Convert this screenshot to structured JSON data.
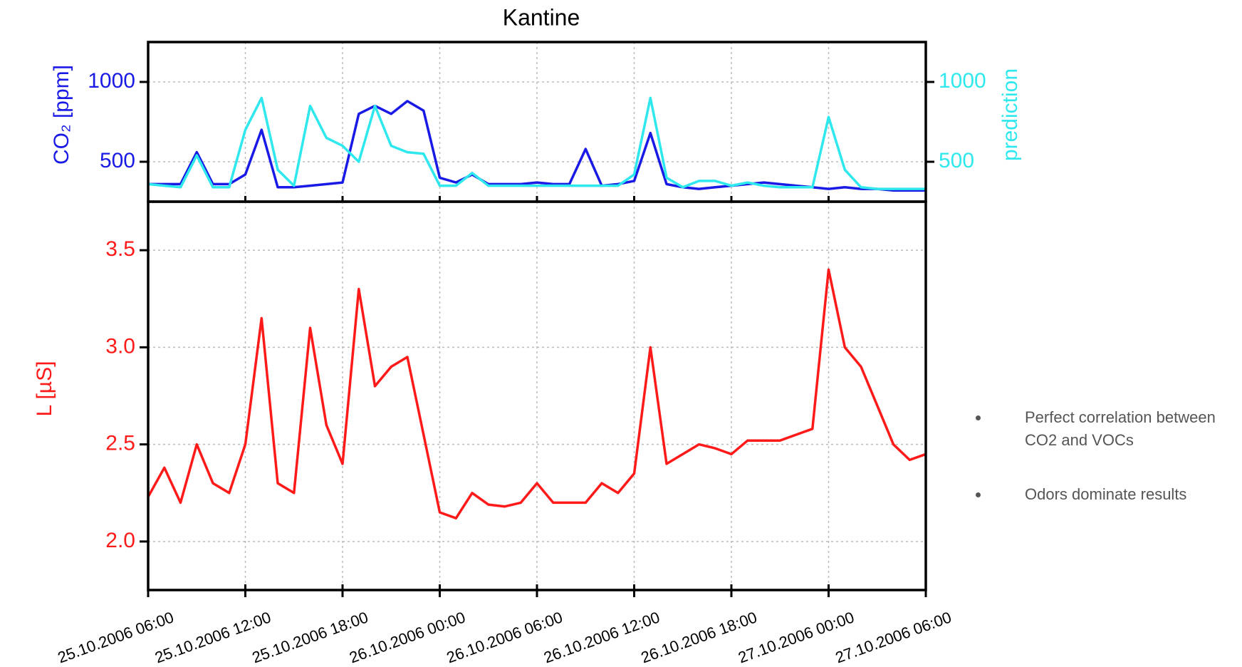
{
  "chart_data": [
    {
      "type": "line",
      "title": "Kantine",
      "ylabel": "CO₂ [ppm]",
      "y2label": "prediction",
      "xlim": [
        "2006-10-25T06:00",
        "2006-10-27T06:00"
      ],
      "ylim": [
        250,
        1250
      ],
      "yticks": [
        500,
        1000
      ],
      "y2lim": [
        250,
        1250
      ],
      "y2ticks": [
        500,
        1000
      ],
      "grid": true,
      "x": [
        "2006-10-25T06:00",
        "2006-10-25T07:00",
        "2006-10-25T08:00",
        "2006-10-25T09:00",
        "2006-10-25T10:00",
        "2006-10-25T11:00",
        "2006-10-25T12:00",
        "2006-10-25T13:00",
        "2006-10-25T14:00",
        "2006-10-25T15:00",
        "2006-10-25T16:00",
        "2006-10-25T17:00",
        "2006-10-25T18:00",
        "2006-10-25T19:00",
        "2006-10-25T20:00",
        "2006-10-25T21:00",
        "2006-10-25T22:00",
        "2006-10-25T23:00",
        "2006-10-26T00:00",
        "2006-10-26T01:00",
        "2006-10-26T02:00",
        "2006-10-26T03:00",
        "2006-10-26T04:00",
        "2006-10-26T05:00",
        "2006-10-26T06:00",
        "2006-10-26T07:00",
        "2006-10-26T08:00",
        "2006-10-26T09:00",
        "2006-10-26T10:00",
        "2006-10-26T11:00",
        "2006-10-26T12:00",
        "2006-10-26T13:00",
        "2006-10-26T14:00",
        "2006-10-26T15:00",
        "2006-10-26T16:00",
        "2006-10-26T17:00",
        "2006-10-26T18:00",
        "2006-10-26T19:00",
        "2006-10-26T20:00",
        "2006-10-26T21:00",
        "2006-10-26T22:00",
        "2006-10-26T23:00",
        "2006-10-27T00:00",
        "2006-10-27T01:00",
        "2006-10-27T02:00",
        "2006-10-27T03:00",
        "2006-10-27T04:00",
        "2006-10-27T05:00",
        "2006-10-27T06:00"
      ],
      "series": [
        {
          "name": "CO2",
          "color": "#1a1ae6",
          "values": [
            360,
            360,
            360,
            560,
            360,
            360,
            420,
            700,
            340,
            340,
            350,
            360,
            370,
            800,
            850,
            800,
            880,
            820,
            400,
            370,
            420,
            360,
            360,
            360,
            370,
            360,
            360,
            580,
            350,
            360,
            380,
            680,
            360,
            340,
            330,
            340,
            350,
            360,
            370,
            360,
            350,
            340,
            330,
            340,
            330,
            330,
            320,
            320,
            320
          ]
        },
        {
          "name": "prediction",
          "color": "#2ee8ee",
          "axis": "y2",
          "values": [
            360,
            350,
            340,
            540,
            340,
            340,
            700,
            900,
            450,
            350,
            850,
            650,
            600,
            500,
            850,
            600,
            560,
            550,
            350,
            350,
            430,
            350,
            350,
            350,
            350,
            350,
            350,
            350,
            350,
            350,
            420,
            900,
            400,
            340,
            380,
            380,
            350,
            370,
            350,
            340,
            340,
            340,
            780,
            450,
            340,
            330,
            330,
            330,
            330
          ]
        }
      ]
    },
    {
      "type": "line",
      "ylabel": "L [µS]",
      "xlim": [
        "2006-10-25T06:00",
        "2006-10-27T06:00"
      ],
      "xticks": [
        {
          "value": "2006-10-25T06:00",
          "label": "25.10.2006 06:00"
        },
        {
          "value": "2006-10-25T12:00",
          "label": "25.10.2006 12:00"
        },
        {
          "value": "2006-10-25T18:00",
          "label": "25.10.2006 18:00"
        },
        {
          "value": "2006-10-26T00:00",
          "label": "26.10.2006 00:00"
        },
        {
          "value": "2006-10-26T06:00",
          "label": "26.10.2006 06:00"
        },
        {
          "value": "2006-10-26T12:00",
          "label": "26.10.2006 12:00"
        },
        {
          "value": "2006-10-26T18:00",
          "label": "26.10.2006 18:00"
        },
        {
          "value": "2006-10-27T00:00",
          "label": "27.10.2006 00:00"
        },
        {
          "value": "2006-10-27T06:00",
          "label": "27.10.2006 06:00"
        }
      ],
      "ylim": [
        1.75,
        3.75
      ],
      "yticks": [
        {
          "value": 2,
          "label": "2.0"
        },
        2.5,
        {
          "value": 3,
          "label": "3.0"
        },
        3.5
      ],
      "grid": true,
      "x": [
        "2006-10-25T06:00",
        "2006-10-25T07:00",
        "2006-10-25T08:00",
        "2006-10-25T09:00",
        "2006-10-25T10:00",
        "2006-10-25T11:00",
        "2006-10-25T12:00",
        "2006-10-25T13:00",
        "2006-10-25T14:00",
        "2006-10-25T15:00",
        "2006-10-25T16:00",
        "2006-10-25T17:00",
        "2006-10-25T18:00",
        "2006-10-25T19:00",
        "2006-10-25T20:00",
        "2006-10-25T21:00",
        "2006-10-25T22:00",
        "2006-10-25T23:00",
        "2006-10-26T00:00",
        "2006-10-26T01:00",
        "2006-10-26T02:00",
        "2006-10-26T03:00",
        "2006-10-26T04:00",
        "2006-10-26T05:00",
        "2006-10-26T06:00",
        "2006-10-26T07:00",
        "2006-10-26T08:00",
        "2006-10-26T09:00",
        "2006-10-26T10:00",
        "2006-10-26T11:00",
        "2006-10-26T12:00",
        "2006-10-26T13:00",
        "2006-10-26T14:00",
        "2006-10-26T15:00",
        "2006-10-26T16:00",
        "2006-10-26T17:00",
        "2006-10-26T18:00",
        "2006-10-26T19:00",
        "2006-10-26T20:00",
        "2006-10-26T21:00",
        "2006-10-26T22:00",
        "2006-10-26T23:00",
        "2006-10-27T00:00",
        "2006-10-27T01:00",
        "2006-10-27T02:00",
        "2006-10-27T03:00",
        "2006-10-27T04:00",
        "2006-10-27T05:00",
        "2006-10-27T06:00"
      ],
      "series": [
        {
          "name": "L",
          "color": "#ff1a1a",
          "values": [
            2.23,
            2.38,
            2.2,
            2.5,
            2.3,
            2.25,
            2.5,
            3.15,
            2.3,
            2.25,
            3.1,
            2.6,
            2.4,
            3.3,
            2.8,
            2.9,
            2.95,
            2.55,
            2.15,
            2.12,
            2.25,
            2.19,
            2.18,
            2.2,
            2.3,
            2.2,
            2.2,
            2.2,
            2.3,
            2.25,
            2.35,
            3.0,
            2.4,
            2.45,
            2.5,
            2.48,
            2.45,
            2.52,
            2.52,
            2.52,
            2.55,
            2.58,
            3.4,
            3.0,
            2.9,
            2.7,
            2.5,
            2.42,
            2.45
          ]
        }
      ]
    }
  ],
  "notes": [
    "Perfect correlation between CO2 and VOCs",
    "Odors dominate results"
  ]
}
